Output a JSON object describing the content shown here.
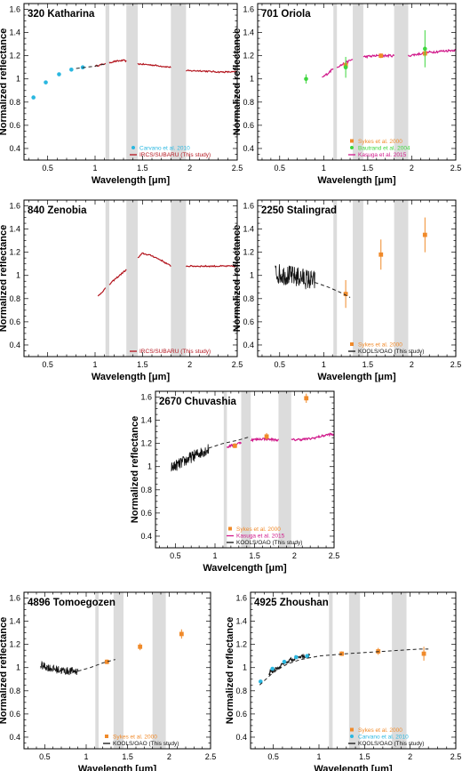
{
  "colors": {
    "band": "#dcdcdc",
    "Carvano et al. 2010": "#2ab7e0",
    "IRCS/SUBARU (This study)": "#b3151e",
    "Sykes et al. 2000": "#f08a2a",
    "Bautrand et al. 2004": "#3ed63e",
    "Kasuga et al. 2015": "#d0188a",
    "KOOLS/OAO (This study)": "#111111",
    "fit": "#222222"
  },
  "chart_data": [
    {
      "type": "scatter",
      "title": "320 Katharina",
      "xlabel": "Wavelength [μm]",
      "ylabel": "Normalized reflectance",
      "xlim": [
        0.25,
        2.5
      ],
      "ylim": [
        0.3,
        1.65
      ],
      "xticks": [
        "0.5",
        "1",
        "1.5",
        "2",
        "2.5"
      ],
      "yticks": [
        "0.4",
        "0.6",
        "0.8",
        "1",
        "1.2",
        "1.4",
        "1.6"
      ],
      "bands": [
        [
          1.11,
          1.15
        ],
        [
          1.33,
          1.45
        ],
        [
          1.8,
          1.96
        ]
      ],
      "legend": [
        "Carvano et al. 2010",
        "IRCS/SUBARU (This study)"
      ],
      "series": [
        {
          "name": "Carvano et al. 2010",
          "kind": "points",
          "x": [
            0.35,
            0.48,
            0.62,
            0.75,
            0.87
          ],
          "y": [
            0.84,
            0.97,
            1.04,
            1.08,
            1.1
          ]
        },
        {
          "name": "IRCS/SUBARU (This study)",
          "kind": "spectrum",
          "ranges": [
            [
              1.0,
              1.11
            ],
            [
              1.15,
              1.33
            ],
            [
              1.45,
              1.8
            ],
            [
              1.96,
              2.5
            ]
          ],
          "noise": 0.006,
          "x": [
            1.0,
            1.1,
            1.2,
            1.3,
            1.45,
            1.6,
            1.8,
            1.96,
            2.1,
            2.3,
            2.5
          ],
          "y": [
            1.11,
            1.13,
            1.15,
            1.16,
            1.13,
            1.12,
            1.1,
            1.07,
            1.07,
            1.06,
            1.06
          ]
        }
      ],
      "fit": {
        "x": [
          0.8,
          0.9,
          1.0,
          1.11
        ],
        "y": [
          1.09,
          1.1,
          1.11,
          1.13
        ]
      }
    },
    {
      "type": "scatter",
      "title": "701 Oriola",
      "xlabel": "Wavelength [μm]",
      "ylabel": "Normalized reflectance",
      "xlim": [
        0.25,
        2.5
      ],
      "ylim": [
        0.3,
        1.65
      ],
      "xticks": [
        "0.5",
        "1",
        "1.5",
        "2",
        "2.5"
      ],
      "yticks": [
        "0.4",
        "0.6",
        "0.8",
        "1",
        "1.2",
        "1.4",
        "1.6"
      ],
      "bands": [
        [
          1.11,
          1.15
        ],
        [
          1.33,
          1.45
        ],
        [
          1.8,
          1.96
        ]
      ],
      "legend": [
        "Sykes et al. 2000",
        "Bautrand et al. 2004",
        "Kasuga et al. 2015"
      ],
      "series": [
        {
          "name": "Kasuga et al. 2015",
          "kind": "spectrum",
          "ranges": [
            [
              0.98,
              1.11
            ],
            [
              1.15,
              1.33
            ],
            [
              1.45,
              1.8
            ],
            [
              1.96,
              2.5
            ]
          ],
          "noise": 0.01,
          "x": [
            0.98,
            1.05,
            1.11,
            1.2,
            1.33,
            1.45,
            1.6,
            1.8,
            1.96,
            2.2,
            2.5
          ],
          "y": [
            1.01,
            1.05,
            1.09,
            1.12,
            1.17,
            1.19,
            1.2,
            1.2,
            1.2,
            1.23,
            1.25
          ]
        },
        {
          "name": "Sykes et al. 2000",
          "kind": "squares",
          "x": [
            1.25,
            1.65,
            2.15
          ],
          "y": [
            1.12,
            1.2,
            1.22
          ],
          "err": [
            0.02,
            0.02,
            0.03
          ]
        },
        {
          "name": "Bautrand et al. 2004",
          "kind": "points",
          "x": [
            0.8,
            1.25,
            2.15
          ],
          "y": [
            1.0,
            1.1,
            1.26
          ],
          "err": [
            0.04,
            0.09,
            0.16
          ]
        }
      ]
    },
    {
      "type": "line",
      "title": "840 Zenobia",
      "xlabel": "Wavelength [μm]",
      "ylabel": "Normalized reflectance",
      "xlim": [
        0.25,
        2.5
      ],
      "ylim": [
        0.3,
        1.65
      ],
      "xticks": [
        "0.5",
        "1",
        "1.5",
        "2",
        "2.5"
      ],
      "yticks": [
        "0.4",
        "0.6",
        "0.8",
        "1",
        "1.2",
        "1.4",
        "1.6"
      ],
      "bands": [
        [
          1.11,
          1.15
        ],
        [
          1.33,
          1.45
        ],
        [
          1.8,
          1.96
        ]
      ],
      "legend": [
        "IRCS/SUBARU (This study)"
      ],
      "series": [
        {
          "name": "IRCS/SUBARU (This study)",
          "kind": "spectrum",
          "ranges": [
            [
              1.03,
              1.11
            ],
            [
              1.15,
              1.33
            ],
            [
              1.45,
              1.8
            ],
            [
              1.96,
              2.5
            ]
          ],
          "noise": 0.006,
          "x": [
            1.03,
            1.1,
            1.2,
            1.33,
            1.45,
            1.5,
            1.6,
            1.7,
            1.8,
            1.96,
            2.2,
            2.5
          ],
          "y": [
            0.82,
            0.88,
            0.96,
            1.05,
            1.15,
            1.19,
            1.17,
            1.13,
            1.08,
            1.08,
            1.08,
            1.08
          ]
        }
      ]
    },
    {
      "type": "scatter",
      "title": "2250 Stalingrad",
      "xlabel": "Wavelength [μm]",
      "ylabel": "Normalized reflectance",
      "xlim": [
        0.25,
        2.5
      ],
      "ylim": [
        0.3,
        1.65
      ],
      "xticks": [
        "0.5",
        "1",
        "1.5",
        "2",
        "2.5"
      ],
      "yticks": [
        "0.4",
        "0.6",
        "0.8",
        "1",
        "1.2",
        "1.4",
        "1.6"
      ],
      "bands": [
        [
          1.11,
          1.15
        ],
        [
          1.33,
          1.45
        ],
        [
          1.8,
          1.96
        ]
      ],
      "legend": [
        "Sykes et al. 2000",
        "KOOLS/OAO (This study)"
      ],
      "series": [
        {
          "name": "KOOLS/OAO (This study)",
          "kind": "spectrum",
          "ranges": [
            [
              0.45,
              0.9
            ]
          ],
          "noise": 0.09,
          "x": [
            0.45,
            0.6,
            0.75,
            0.9
          ],
          "y": [
            1.02,
            1.0,
            0.98,
            0.95
          ]
        },
        {
          "name": "Sykes et al. 2000",
          "kind": "squares",
          "x": [
            1.25,
            1.65,
            2.15
          ],
          "y": [
            0.84,
            1.18,
            1.35
          ],
          "err": [
            0.12,
            0.13,
            0.15
          ]
        }
      ],
      "fit": {
        "x": [
          0.9,
          1.05,
          1.2,
          1.3
        ],
        "y": [
          0.94,
          0.9,
          0.85,
          0.81
        ]
      }
    },
    {
      "type": "scatter",
      "title": "2670 Chuvashia",
      "xlabel": "Wavelcength [μm]",
      "ylabel": "Normalized reflectance",
      "xlim": [
        0.25,
        2.5
      ],
      "ylim": [
        0.3,
        1.65
      ],
      "xticks": [
        "0.5",
        "1",
        "1.5",
        "2",
        "2.5"
      ],
      "yticks": [
        "0.4",
        "0.6",
        "0.8",
        "1",
        "1.2",
        "1.4",
        "1.6"
      ],
      "bands": [
        [
          1.11,
          1.15
        ],
        [
          1.33,
          1.45
        ],
        [
          1.8,
          1.96
        ]
      ],
      "legend": [
        "Sykes et al. 2000",
        "Kasuga et al. 2015",
        "KOOLS/OAO (This study)"
      ],
      "series": [
        {
          "name": "KOOLS/OAO (This study)",
          "kind": "spectrum",
          "ranges": [
            [
              0.45,
              0.92
            ]
          ],
          "noise": 0.05,
          "x": [
            0.45,
            0.6,
            0.75,
            0.92
          ],
          "y": [
            0.99,
            1.04,
            1.1,
            1.15
          ]
        },
        {
          "name": "Kasuga et al. 2015",
          "kind": "spectrum",
          "ranges": [
            [
              1.15,
              1.33
            ],
            [
              1.45,
              1.8
            ],
            [
              1.96,
              2.5
            ]
          ],
          "noise": 0.01,
          "x": [
            1.15,
            1.25,
            1.33,
            1.45,
            1.6,
            1.8,
            1.96,
            2.2,
            2.45,
            2.5
          ],
          "y": [
            1.17,
            1.19,
            1.21,
            1.23,
            1.24,
            1.23,
            1.23,
            1.24,
            1.28,
            1.27
          ]
        },
        {
          "name": "Sykes et al. 2000",
          "kind": "squares",
          "x": [
            1.25,
            1.65,
            2.15
          ],
          "y": [
            1.18,
            1.26,
            1.59
          ],
          "err": [
            0.02,
            0.03,
            0.04
          ]
        }
      ],
      "fit": {
        "x": [
          0.92,
          1.1,
          1.3,
          1.45
        ],
        "y": [
          1.16,
          1.2,
          1.23,
          1.26
        ]
      }
    },
    {
      "type": "scatter",
      "title": "4896 Tomoegozen",
      "xlabel": "Wavelength [μm]",
      "ylabel": "Normalized reflectance",
      "xlim": [
        0.25,
        2.5
      ],
      "ylim": [
        0.3,
        1.65
      ],
      "xticks": [
        "0.5",
        "1",
        "1.5",
        "2",
        "2.5"
      ],
      "yticks": [
        "0.4",
        "0.6",
        "0.8",
        "1",
        "1.2",
        "1.4",
        "1.6"
      ],
      "bands": [
        [
          1.11,
          1.15
        ],
        [
          1.33,
          1.45
        ],
        [
          1.8,
          1.96
        ]
      ],
      "legend": [
        "Sykes et al. 2000",
        "KOOLS/OAO (This study)"
      ],
      "series": [
        {
          "name": "KOOLS/OAO (This study)",
          "kind": "spectrum",
          "ranges": [
            [
              0.45,
              0.9
            ]
          ],
          "noise": 0.035,
          "x": [
            0.45,
            0.6,
            0.75,
            0.9
          ],
          "y": [
            1.02,
            0.99,
            0.97,
            0.97
          ]
        },
        {
          "name": "Sykes et al. 2000",
          "kind": "squares",
          "x": [
            1.25,
            1.65,
            2.15
          ],
          "y": [
            1.05,
            1.18,
            1.29
          ],
          "err": [
            0.02,
            0.03,
            0.04
          ]
        }
      ],
      "fit": {
        "x": [
          0.9,
          1.05,
          1.2,
          1.35
        ],
        "y": [
          0.97,
          1.0,
          1.04,
          1.07
        ]
      }
    },
    {
      "type": "scatter",
      "title": "4925 Zhoushan",
      "xlabel": "Wavelength [μm]",
      "ylabel": "Normalized reflectance",
      "xlim": [
        0.25,
        2.5
      ],
      "ylim": [
        0.3,
        1.65
      ],
      "xticks": [
        "0.5",
        "1",
        "1.5",
        "2",
        "2.5"
      ],
      "yticks": [
        "0.4",
        "0.6",
        "0.8",
        "1",
        "1.2",
        "1.4",
        "1.6"
      ],
      "bands": [
        [
          1.11,
          1.15
        ],
        [
          1.33,
          1.45
        ],
        [
          1.8,
          1.96
        ]
      ],
      "legend": [
        "Sykes et al. 2000",
        "Carvano et al. 2010",
        "KOOLS/OAO (This study)"
      ],
      "series": [
        {
          "name": "KOOLS/OAO (This study)",
          "kind": "spectrum",
          "ranges": [
            [
              0.45,
              0.9
            ]
          ],
          "noise": 0.02,
          "x": [
            0.45,
            0.55,
            0.65,
            0.75,
            0.9
          ],
          "y": [
            0.95,
            1.0,
            1.05,
            1.09,
            1.1
          ]
        },
        {
          "name": "Carvano et al. 2010",
          "kind": "points",
          "x": [
            0.36,
            0.49,
            0.62,
            0.75,
            0.87
          ],
          "y": [
            0.88,
            0.99,
            1.05,
            1.09,
            1.1
          ]
        },
        {
          "name": "Sykes et al. 2000",
          "kind": "squares",
          "x": [
            1.25,
            1.65,
            2.15
          ],
          "y": [
            1.12,
            1.14,
            1.12
          ],
          "err": [
            0.02,
            0.03,
            0.06
          ]
        }
      ],
      "fit": {
        "x": [
          0.35,
          0.5,
          0.65,
          0.8,
          1.0,
          1.3,
          1.7,
          2.1,
          2.2
        ],
        "y": [
          0.85,
          0.96,
          1.03,
          1.07,
          1.1,
          1.12,
          1.14,
          1.16,
          1.16
        ]
      }
    }
  ]
}
